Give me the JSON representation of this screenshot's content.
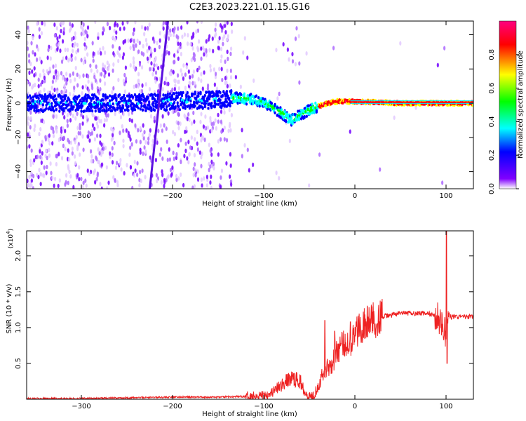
{
  "title": "C2E3.2023.221.01.15.G16",
  "chart_data": [
    {
      "type": "heatmap",
      "xlabel": "Height of straight line (km)",
      "ylabel": "Frequency (Hz)",
      "xlim": [
        -360,
        130
      ],
      "ylim": [
        -50,
        48
      ],
      "x_ticks": [
        -300,
        -200,
        -100,
        0,
        100
      ],
      "y_ticks": [
        -40,
        -20,
        0,
        20,
        40
      ],
      "colorbar": {
        "label": "Normalized spectral amplitude",
        "range": [
          0,
          1
        ],
        "ticks": [
          0.0,
          0.2,
          0.4,
          0.6,
          0.8
        ],
        "colormap": [
          "#ffffff",
          "#8000ff",
          "#0000ff",
          "#00ffff",
          "#00ff00",
          "#ffff00",
          "#ff0000",
          "#ff0080"
        ]
      },
      "signal_track": {
        "x": [
          -360,
          -320,
          -280,
          -240,
          -200,
          -160,
          -130,
          -110,
          -95,
          -80,
          -70,
          -60,
          -50,
          -40,
          -30,
          -20,
          -10,
          0,
          50,
          100,
          130
        ],
        "y": [
          0,
          0,
          0,
          0,
          1,
          2,
          3,
          2,
          -1,
          -6,
          -10,
          -7,
          -4,
          -2,
          0,
          1,
          1,
          1,
          0,
          0,
          0
        ]
      },
      "streak": {
        "x": [
          -225,
          -205
        ],
        "y": [
          -50,
          48
        ]
      }
    },
    {
      "type": "line",
      "xlabel": "Height of straight line (km)",
      "ylabel": "SNR (10 * v/v)",
      "y_multiplier": "(x10",
      "y_multiplier_exp": "4",
      "y_multiplier_close": ")",
      "xlim": [
        -360,
        130
      ],
      "ylim": [
        0,
        2.35
      ],
      "x_ticks": [
        -300,
        -200,
        -100,
        0,
        100
      ],
      "y_ticks": [
        0.5,
        1.0,
        1.5,
        2.0
      ],
      "series": [
        {
          "color": "#ee2222",
          "x": [
            -360,
            -300,
            -200,
            -150,
            -120,
            -100,
            -90,
            -80,
            -70,
            -60,
            -55,
            -50,
            -45,
            -40,
            -35,
            -30,
            -25,
            -20,
            -15,
            -10,
            -5,
            0,
            5,
            10,
            20,
            30,
            50,
            80,
            90,
            95,
            100,
            102,
            105,
            110,
            130
          ],
          "y": [
            0.01,
            0.01,
            0.03,
            0.03,
            0.04,
            0.06,
            0.1,
            0.2,
            0.3,
            0.25,
            0.12,
            0.04,
            0.06,
            0.2,
            0.35,
            0.45,
            0.5,
            0.65,
            0.75,
            0.78,
            0.8,
            0.9,
            1.0,
            1.05,
            1.1,
            1.15,
            1.2,
            1.2,
            1.15,
            1.1,
            0.85,
            1.2,
            1.15,
            1.15,
            1.15
          ]
        }
      ]
    }
  ]
}
